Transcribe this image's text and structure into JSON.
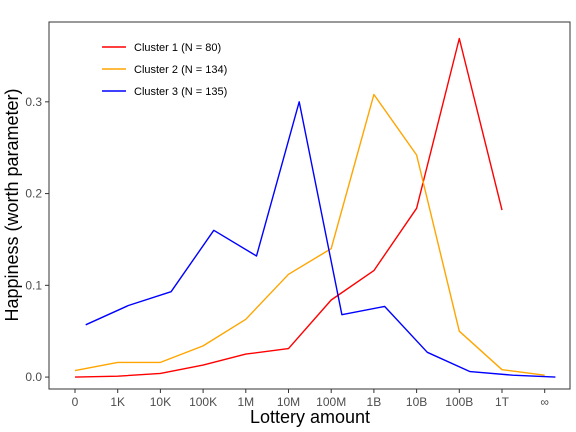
{
  "chart_data": {
    "type": "line",
    "title": "",
    "xlabel": "Lottery amount",
    "ylabel": "Happiness (worth parameter)",
    "categories": [
      "0",
      "1K",
      "10K",
      "100K",
      "1M",
      "10M",
      "100M",
      "1B",
      "10B",
      "100B",
      "1T",
      "∞"
    ],
    "yticks": [
      0.0,
      0.1,
      0.2,
      0.3
    ],
    "ytick_labels": [
      "0.0",
      "0.1",
      "0.2",
      "0.3"
    ],
    "ylim": [
      -0.013,
      0.387
    ],
    "grid": false,
    "legend_position": "top-left",
    "series": [
      {
        "name": "Cluster 1 (N = 80)",
        "color": "#ff0000",
        "x": [
          0,
          1,
          2,
          3,
          4,
          5,
          6,
          7,
          8,
          9,
          10,
          11
        ],
        "values": [
          0.0,
          0.001,
          0.004,
          0.013,
          0.025,
          0.031,
          0.084,
          0.116,
          0.184,
          0.369,
          0.182,
          null
        ]
      },
      {
        "name": "Cluster 2 (N = 134)",
        "color": "#ffa500",
        "x": [
          0,
          1,
          2,
          3,
          4,
          5,
          6,
          7,
          8,
          9,
          10,
          11
        ],
        "values": [
          0.007,
          0.016,
          0.016,
          0.034,
          0.063,
          0.112,
          0.14,
          0.308,
          0.242,
          0.05,
          0.008,
          0.002
        ]
      },
      {
        "name": "Cluster 3 (N = 135)",
        "color": "#0000ff",
        "x": [
          0.25,
          1.25,
          2.25,
          3.25,
          4.25,
          5.25,
          6.25,
          7.25,
          8.25,
          9.25,
          10.25,
          11.25
        ],
        "values": [
          0.057,
          0.078,
          0.093,
          0.16,
          0.132,
          0.3,
          0.068,
          0.077,
          0.027,
          0.006,
          0.002,
          0.0
        ]
      }
    ]
  }
}
